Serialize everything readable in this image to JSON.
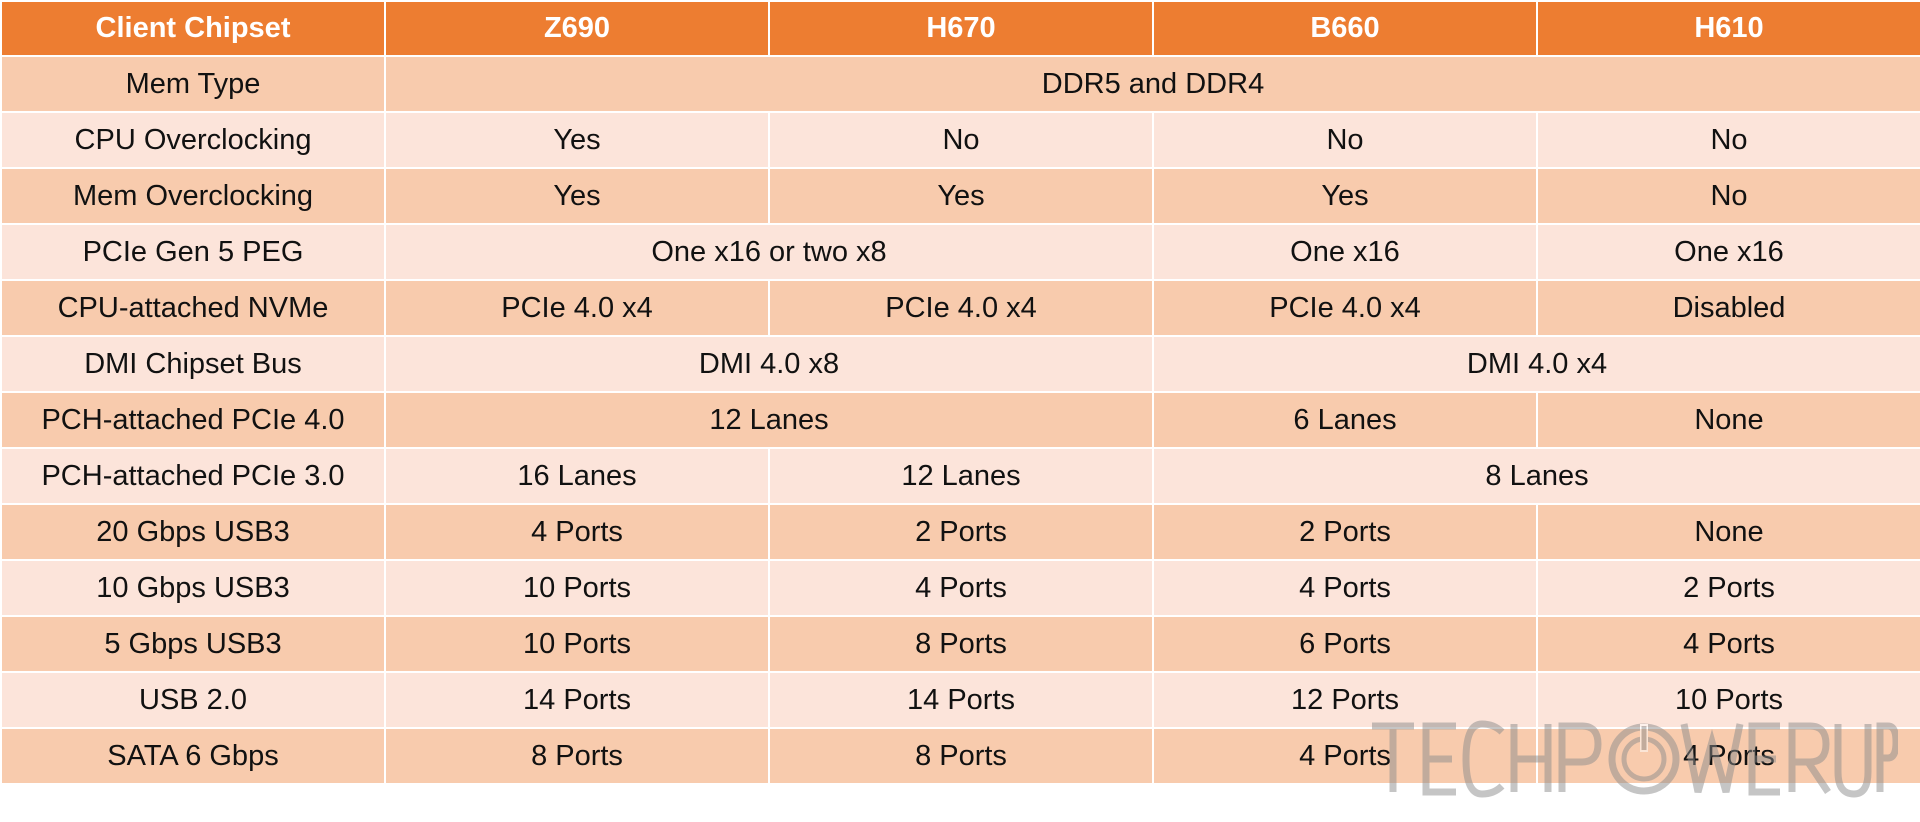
{
  "table": {
    "headers": [
      "Client Chipset",
      "Z690",
      "H670",
      "B660",
      "H610"
    ],
    "rows": [
      {
        "label": "Mem Type",
        "cells": [
          {
            "text": "DDR5 and DDR4",
            "span": 4
          }
        ]
      },
      {
        "label": "CPU Overclocking",
        "cells": [
          {
            "text": "Yes",
            "span": 1
          },
          {
            "text": "No",
            "span": 1
          },
          {
            "text": "No",
            "span": 1
          },
          {
            "text": "No",
            "span": 1
          }
        ]
      },
      {
        "label": "Mem Overclocking",
        "cells": [
          {
            "text": "Yes",
            "span": 1
          },
          {
            "text": "Yes",
            "span": 1
          },
          {
            "text": "Yes",
            "span": 1
          },
          {
            "text": "No",
            "span": 1
          }
        ]
      },
      {
        "label": "PCIe Gen 5 PEG",
        "cells": [
          {
            "text": "One x16 or two x8",
            "span": 2
          },
          {
            "text": "One x16",
            "span": 1
          },
          {
            "text": "One x16",
            "span": 1
          }
        ]
      },
      {
        "label": "CPU-attached NVMe",
        "cells": [
          {
            "text": "PCIe 4.0 x4",
            "span": 1
          },
          {
            "text": "PCIe 4.0 x4",
            "span": 1
          },
          {
            "text": "PCIe 4.0 x4",
            "span": 1
          },
          {
            "text": "Disabled",
            "span": 1
          }
        ]
      },
      {
        "label": "DMI Chipset Bus",
        "cells": [
          {
            "text": "DMI 4.0 x8",
            "span": 2
          },
          {
            "text": "DMI 4.0 x4",
            "span": 2
          }
        ]
      },
      {
        "label": "PCH-attached PCIe 4.0",
        "cells": [
          {
            "text": "12 Lanes",
            "span": 2
          },
          {
            "text": "6 Lanes",
            "span": 1
          },
          {
            "text": "None",
            "span": 1
          }
        ]
      },
      {
        "label": "PCH-attached PCIe 3.0",
        "cells": [
          {
            "text": "16 Lanes",
            "span": 1
          },
          {
            "text": "12 Lanes",
            "span": 1
          },
          {
            "text": "8 Lanes",
            "span": 2
          }
        ]
      },
      {
        "label": "20 Gbps USB3",
        "cells": [
          {
            "text": "4 Ports",
            "span": 1
          },
          {
            "text": "2 Ports",
            "span": 1
          },
          {
            "text": "2 Ports",
            "span": 1
          },
          {
            "text": "None",
            "span": 1
          }
        ]
      },
      {
        "label": "10 Gbps USB3",
        "cells": [
          {
            "text": "10 Ports",
            "span": 1
          },
          {
            "text": "4 Ports",
            "span": 1
          },
          {
            "text": "4 Ports",
            "span": 1
          },
          {
            "text": "2 Ports",
            "span": 1
          }
        ]
      },
      {
        "label": "5 Gbps USB3",
        "cells": [
          {
            "text": "10 Ports",
            "span": 1
          },
          {
            "text": "8 Ports",
            "span": 1
          },
          {
            "text": "6 Ports",
            "span": 1
          },
          {
            "text": "4 Ports",
            "span": 1
          }
        ]
      },
      {
        "label": "USB 2.0",
        "cells": [
          {
            "text": "14 Ports",
            "span": 1
          },
          {
            "text": "14 Ports",
            "span": 1
          },
          {
            "text": "12 Ports",
            "span": 1
          },
          {
            "text": "10 Ports",
            "span": 1
          }
        ]
      },
      {
        "label": "SATA 6 Gbps",
        "cells": [
          {
            "text": "8 Ports",
            "span": 1
          },
          {
            "text": "8 Ports",
            "span": 1
          },
          {
            "text": "4 Ports",
            "span": 1
          },
          {
            "text": "4 Ports",
            "span": 1
          }
        ]
      }
    ]
  },
  "watermark": {
    "text": "TECHPOWERUP",
    "icon": "power-icon",
    "color": "#8c8c8c"
  },
  "colors": {
    "header_bg": "#ed7d31",
    "row_dark": "#f8cbad",
    "row_light": "#fce4da"
  }
}
